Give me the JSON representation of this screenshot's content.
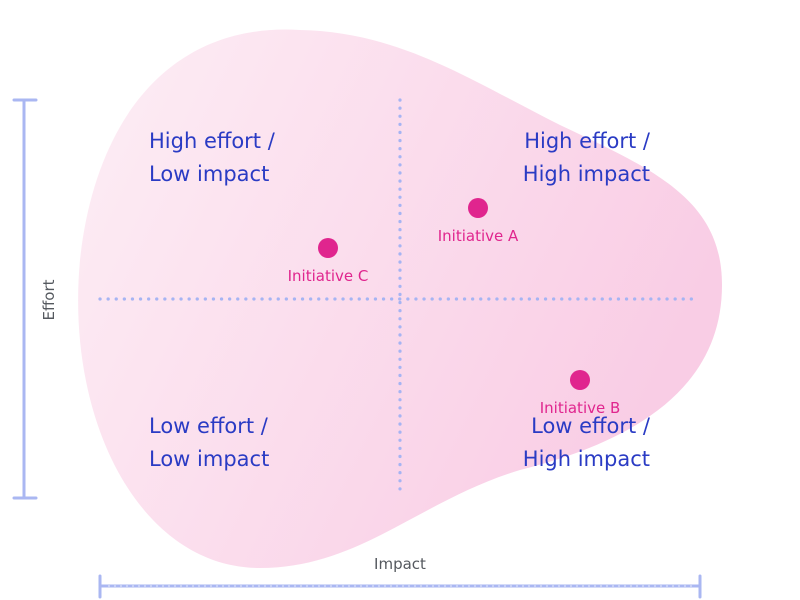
{
  "axes": {
    "x_title": "Impact",
    "y_title": "Effort"
  },
  "quadrants": [
    {
      "id": "top-left",
      "line1": "High effort /",
      "line2": "Low impact"
    },
    {
      "id": "top-right",
      "line1": "High effort /",
      "line2": "High impact"
    },
    {
      "id": "bottom-left",
      "line1": "Low effort /",
      "line2": "Low impact"
    },
    {
      "id": "bottom-right",
      "line1": "Low effort /",
      "line2": "High impact"
    }
  ],
  "initiatives": [
    {
      "label": "Initiative A",
      "impact": 0.63,
      "effort": 0.73
    },
    {
      "label": "Initiative B",
      "impact": 0.8,
      "effort": 0.3
    },
    {
      "label": "Initiative C",
      "impact": 0.38,
      "effort": 0.63
    }
  ],
  "colors": {
    "blob_light": "#fdeef5",
    "blob_dark": "#f9cde5",
    "axis_bracket": "#aab7f2",
    "gridline": "#a6b4f3",
    "quadrant_text": "#2a3bc4",
    "marker": "#e0258e",
    "axis_title": "#55595f"
  }
}
